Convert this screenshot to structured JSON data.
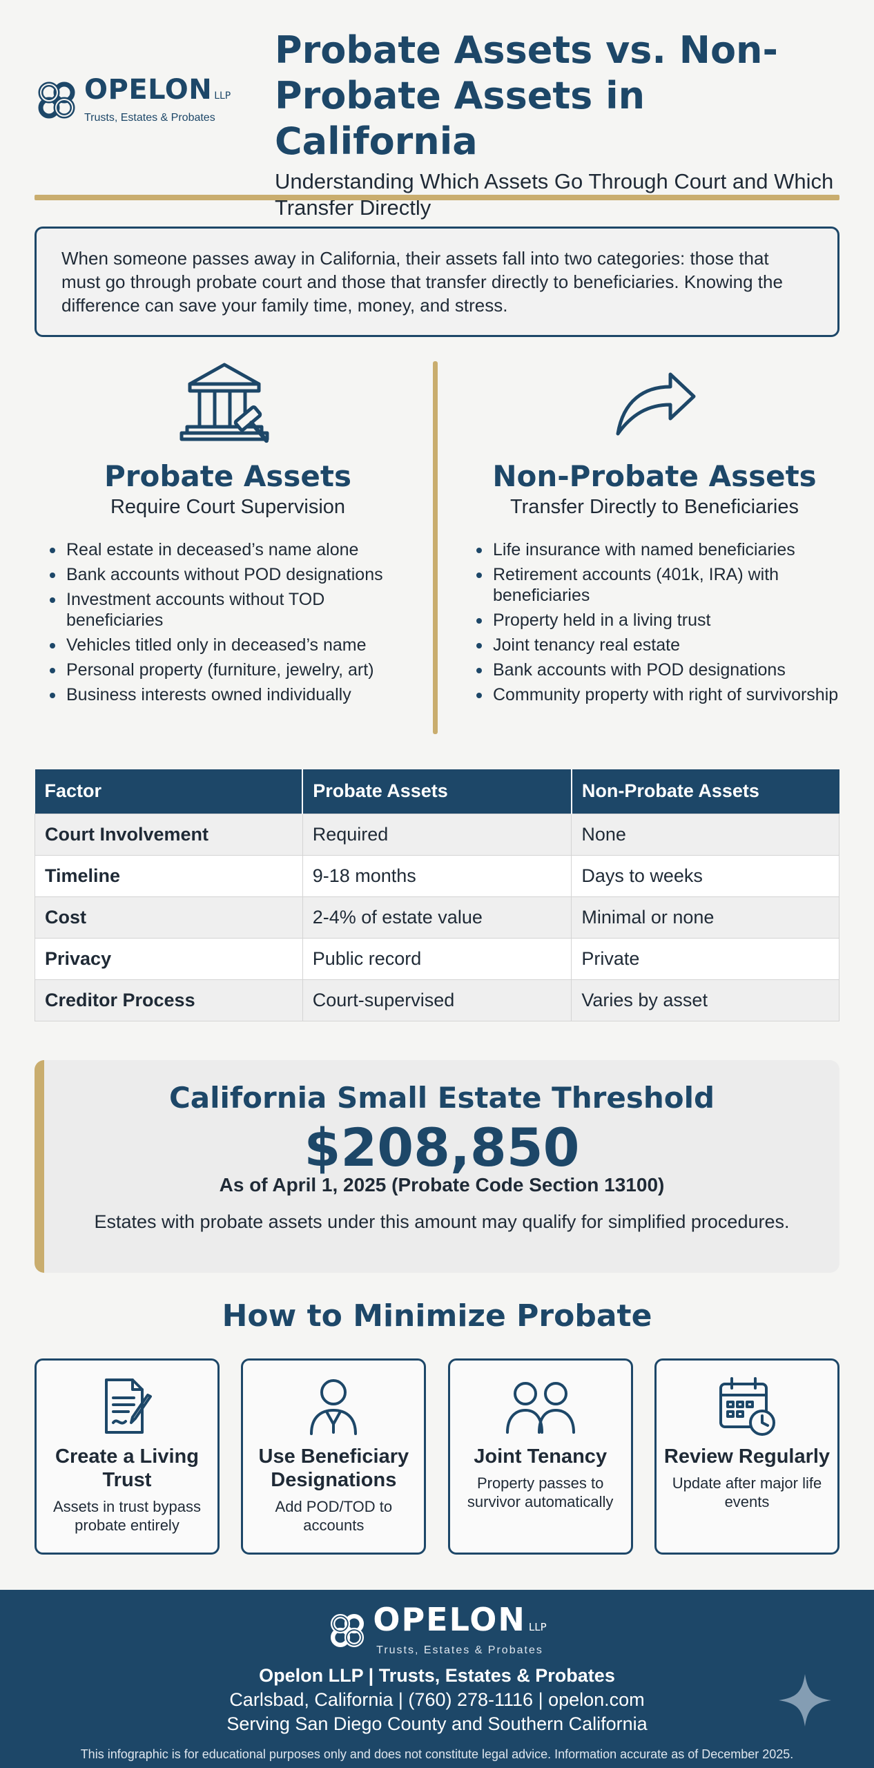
{
  "brand": {
    "name": "OPELON",
    "suffix": "LLP",
    "tagline": "Trusts, Estates & Probates"
  },
  "header": {
    "title": "Probate Assets vs. Non-Probate Assets in California",
    "subtitle": "Understanding Which Assets Go Through Court and Which Transfer Directly"
  },
  "intro": "When someone passes away in California, their assets fall into two categories: those that must go through probate court and those that transfer directly to beneficiaries. Knowing the difference can save your family time, money, and stress.",
  "probate": {
    "icon": "courthouse-gavel-icon",
    "title": "Probate Assets",
    "subtitle": "Require Court Supervision",
    "items": [
      "Real estate in deceased’s name alone",
      "Bank accounts without POD designations",
      "Investment accounts without TOD beneficiaries",
      "Vehicles titled only in deceased’s name",
      "Personal property (furniture, jewelry, art)",
      "Business interests owned individually"
    ]
  },
  "nonprobate": {
    "icon": "curved-arrow-icon",
    "title": "Non-Probate Assets",
    "subtitle": "Transfer Directly to Beneficiaries",
    "items": [
      "Life insurance with named beneficiaries",
      "Retirement accounts (401k, IRA) with beneficiaries",
      "Property held in a living trust",
      "Joint tenancy real estate",
      "Bank accounts with POD designations",
      "Community property with right of survivorship"
    ]
  },
  "table": {
    "headers": [
      "Factor",
      "Probate Assets",
      "Non-Probate Assets"
    ],
    "rows": [
      [
        "Court Involvement",
        "Required",
        "None"
      ],
      [
        "Timeline",
        "9-18 months",
        "Days to weeks"
      ],
      [
        "Cost",
        "2-4% of estate value",
        "Minimal or none"
      ],
      [
        "Privacy",
        "Public record",
        "Private"
      ],
      [
        "Creditor Process",
        "Court-supervised",
        "Varies by asset"
      ]
    ]
  },
  "threshold": {
    "title": "California Small Estate Threshold",
    "amount": "$208,850",
    "as_of": "As of April 1, 2025 (Probate Code Section 13100)",
    "note": "Estates with probate assets under this amount may qualify for simplified procedures."
  },
  "minimize": {
    "title": "How to Minimize Probate",
    "cards": [
      {
        "icon": "document-pen-icon",
        "title": "Create a Living Trust",
        "desc": "Assets in trust bypass probate entirely"
      },
      {
        "icon": "advisor-person-icon",
        "title": "Use Beneficiary Designations",
        "desc": "Add POD/TOD to accounts"
      },
      {
        "icon": "two-people-icon",
        "title": "Joint Tenancy",
        "desc": "Property passes to survivor automatically"
      },
      {
        "icon": "calendar-clock-icon",
        "title": "Review Regularly",
        "desc": "Update after major life events"
      }
    ]
  },
  "footer": {
    "firm": "Opelon LLP | Trusts, Estates & Probates",
    "contact": "Carlsbad, California | (760) 278-1116 | opelon.com",
    "service": "Serving San Diego County and Southern California",
    "disclaimer": "This infographic is for educational purposes only and does not constitute legal advice. Information accurate as of December 2025."
  },
  "colors": {
    "navy": "#1d4768",
    "gold": "#c9ad6e",
    "background": "#f5f5f3"
  }
}
